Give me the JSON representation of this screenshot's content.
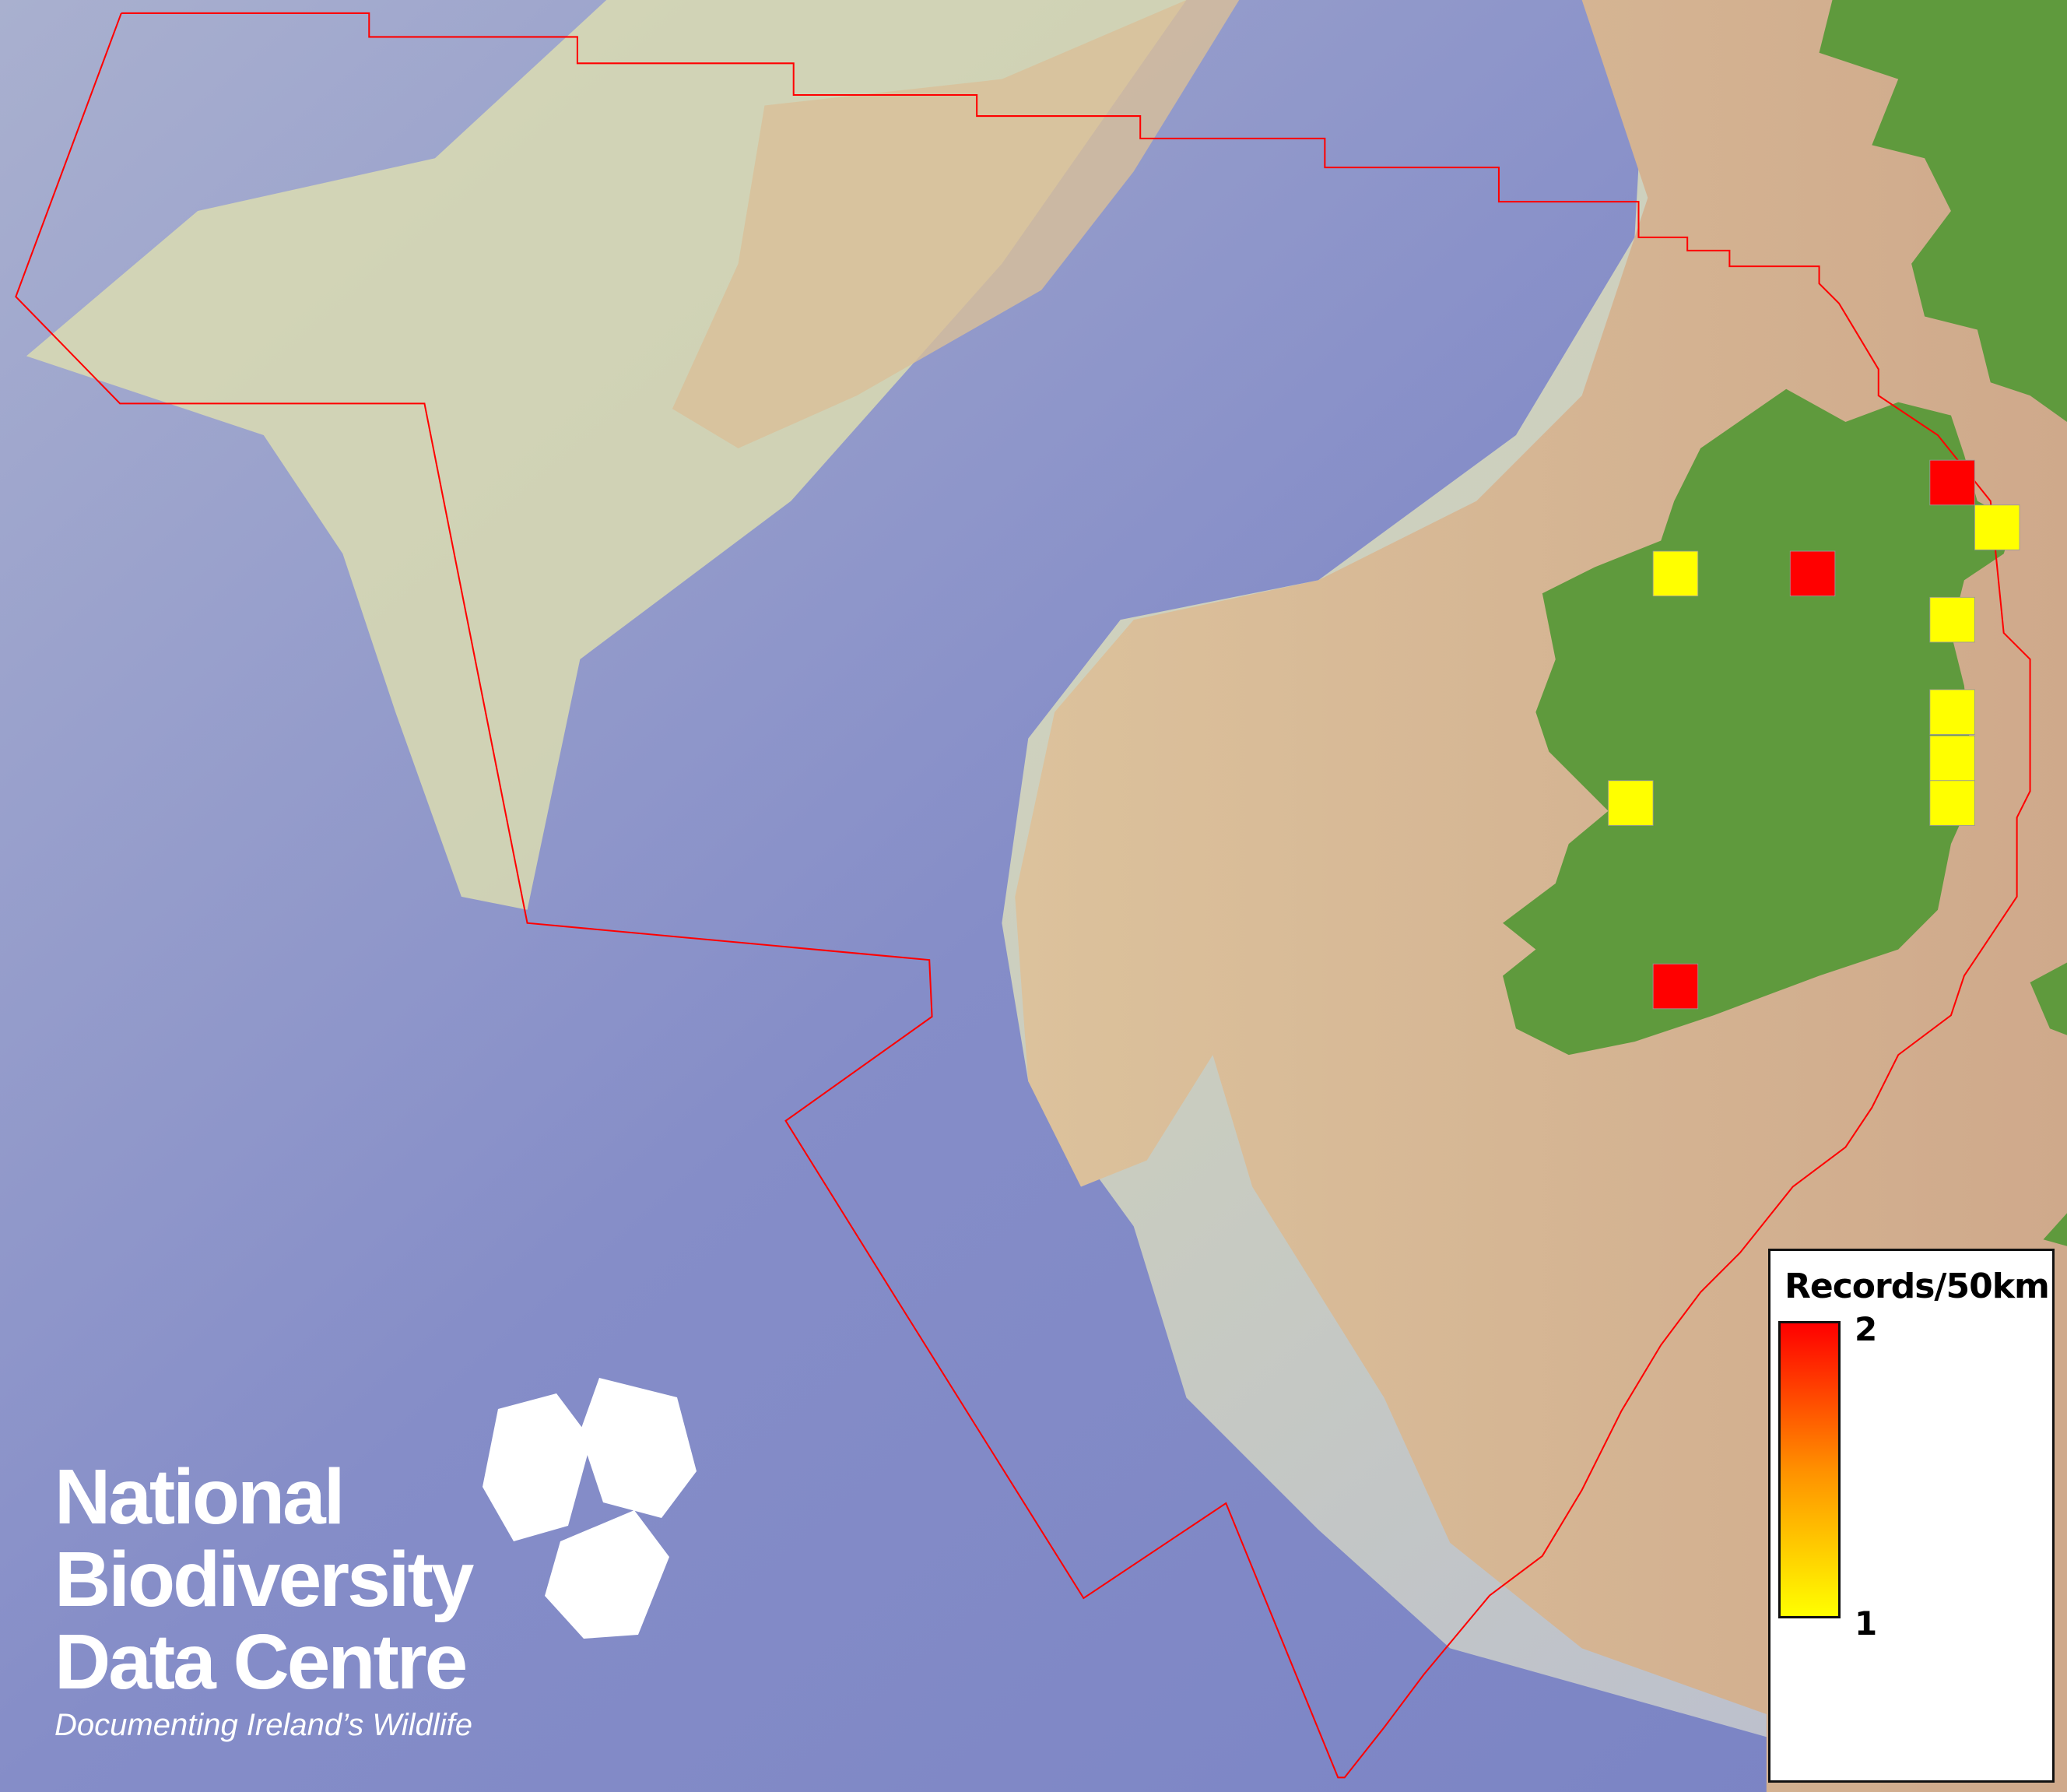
{
  "map": {
    "colors": {
      "deep_sea": "#7e86c6",
      "shelf": "#dcdcb0",
      "shallow": "#d0ab8c",
      "land": "#5e9a3c",
      "boundary": "#ff0000"
    },
    "records": [
      {
        "value": 2
      },
      {
        "value": 1
      },
      {
        "value": 1
      },
      {
        "value": 2
      },
      {
        "value": 1
      },
      {
        "value": 1
      },
      {
        "value": 1
      },
      {
        "value": 1
      },
      {
        "value": 1
      },
      {
        "value": 2
      }
    ]
  },
  "legend": {
    "title": "Records/50km",
    "max_label": "2",
    "min_label": "1",
    "min_color": "#ffff00",
    "max_color": "#ff0000"
  },
  "logo": {
    "line1": "National",
    "line2": "Biodiversity",
    "line3": "Data Centre",
    "tagline": "Documenting Ireland’s Wildlife"
  }
}
